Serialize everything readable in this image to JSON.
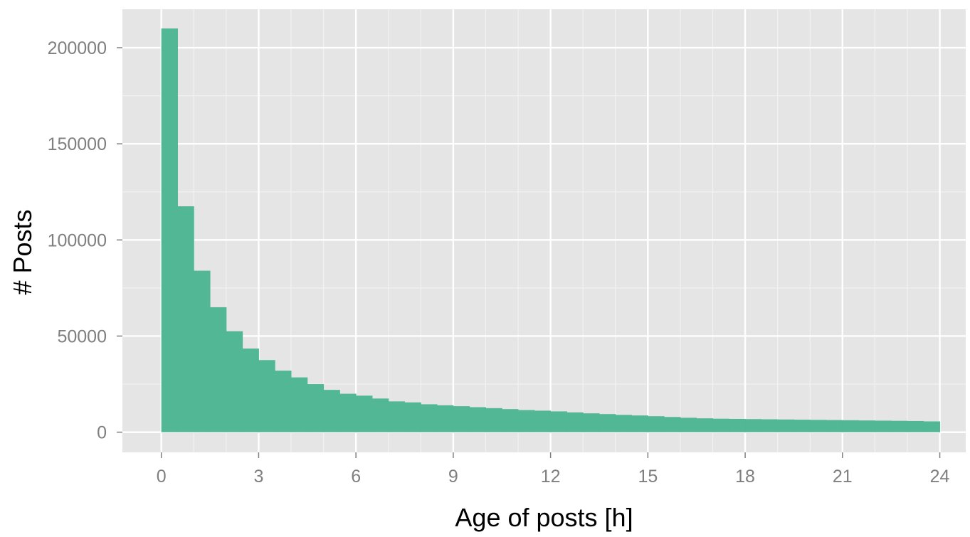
{
  "chart_data": {
    "type": "bar",
    "title": "",
    "xlabel": "Age of posts [h]",
    "ylabel": "# Posts",
    "bin_width": 0.5,
    "bin_starts": [
      0,
      0.5,
      1,
      1.5,
      2,
      2.5,
      3,
      3.5,
      4,
      4.5,
      5,
      5.5,
      6,
      6.5,
      7,
      7.5,
      8,
      8.5,
      9,
      9.5,
      10,
      10.5,
      11,
      11.5,
      12,
      12.5,
      13,
      13.5,
      14,
      14.5,
      15,
      15.5,
      16,
      16.5,
      17,
      17.5,
      18,
      18.5,
      19,
      19.5,
      20,
      20.5,
      21,
      21.5,
      22,
      22.5,
      23,
      23.5
    ],
    "values": [
      210000,
      117500,
      84000,
      65000,
      52500,
      43500,
      37500,
      32000,
      28500,
      25000,
      22000,
      20000,
      19000,
      17500,
      16000,
      15500,
      14500,
      14000,
      13500,
      13000,
      12500,
      12000,
      11500,
      11200,
      10800,
      10300,
      9800,
      9400,
      9000,
      8700,
      8300,
      7900,
      7500,
      7200,
      7000,
      6900,
      6800,
      6700,
      6600,
      6500,
      6400,
      6300,
      6200,
      6100,
      6000,
      5900,
      5800,
      5600
    ],
    "xlim": [
      -1.2,
      24.8
    ],
    "ylim": [
      -10500,
      220000
    ],
    "x_ticks": [
      "0",
      "3",
      "6",
      "9",
      "12",
      "15",
      "18",
      "21",
      "24"
    ],
    "y_ticks": [
      "0",
      "50000",
      "100000",
      "150000",
      "200000"
    ],
    "grid": true,
    "legend": "none",
    "colors": {
      "bar": "#52b795",
      "panel": "#e5e5e5",
      "grid_major": "#ffffff",
      "grid_minor": "#f2f2f2",
      "tick_text": "#7f7f7f",
      "axis_title": "#000000"
    }
  }
}
